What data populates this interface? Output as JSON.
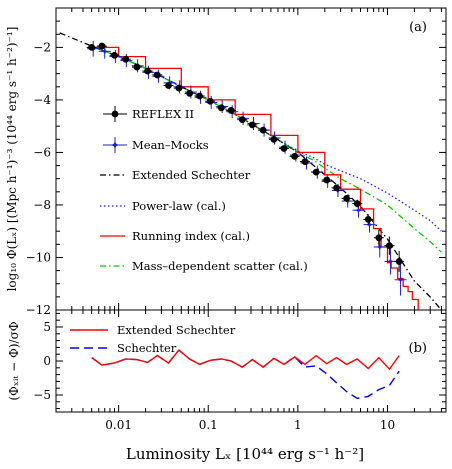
{
  "chart_data": [
    {
      "type": "scatter",
      "panel": "(a)",
      "xscale": "log",
      "xlim": [
        0.002,
        45
      ],
      "ylim": [
        -12,
        -0.5
      ],
      "grid": false,
      "legend_position": "left-center",
      "ylabel": "log₁₀ Φ(Lₓ) [(Mpc h⁻¹)⁻³ (10⁴⁴ erg s⁻¹ h⁻²)⁻¹]",
      "x_ticks": [
        0.01,
        0.1,
        1,
        10
      ],
      "x_tick_labels": [
        "0.01",
        "0.1",
        "1",
        "10"
      ],
      "y_ticks": [
        -2,
        -4,
        -6,
        -8,
        -10,
        -12
      ],
      "y_tick_labels": [
        "−2",
        "−4",
        "−6",
        "−8",
        "−10",
        "−12"
      ],
      "series": [
        {
          "name": "REFLEX II",
          "style": "points-errorbars",
          "color": "#000000",
          "x": [
            0.005,
            0.0065,
            0.009,
            0.012,
            0.016,
            0.021,
            0.027,
            0.036,
            0.047,
            0.062,
            0.08,
            0.105,
            0.14,
            0.18,
            0.24,
            0.31,
            0.41,
            0.54,
            0.7,
            0.92,
            1.2,
            1.6,
            2.1,
            2.7,
            3.5,
            4.6,
            6.1,
            8.0,
            10.5,
            13.5
          ],
          "y": [
            -2.0,
            -1.95,
            -2.3,
            -2.45,
            -2.75,
            -2.9,
            -3.05,
            -3.45,
            -3.55,
            -3.75,
            -3.85,
            -4.05,
            -4.3,
            -4.4,
            -4.75,
            -4.95,
            -5.15,
            -5.5,
            -5.85,
            -6.15,
            -6.35,
            -6.75,
            -7.05,
            -7.35,
            -7.75,
            -7.95,
            -8.55,
            -9.25,
            -9.55,
            -10.15
          ],
          "yerr": [
            0.12,
            0.12,
            0.1,
            0.1,
            0.1,
            0.1,
            0.1,
            0.1,
            0.1,
            0.1,
            0.1,
            0.1,
            0.1,
            0.1,
            0.1,
            0.1,
            0.1,
            0.1,
            0.1,
            0.1,
            0.1,
            0.1,
            0.1,
            0.1,
            0.12,
            0.15,
            0.2,
            0.3,
            0.35,
            0.4
          ]
        },
        {
          "name": "Mean–Mocks",
          "style": "points-errorbars",
          "color": "#1f1fd0",
          "x": [
            0.0052,
            0.007,
            0.0092,
            0.0122,
            0.0163,
            0.0215,
            0.0278,
            0.037,
            0.048,
            0.064,
            0.082,
            0.108,
            0.143,
            0.185,
            0.245,
            0.32,
            0.42,
            0.55,
            0.72,
            0.95,
            1.25,
            1.65,
            2.15,
            2.8,
            3.6,
            4.75,
            6.3,
            8.2,
            10.8,
            14.0
          ],
          "y": [
            -2.05,
            -2.15,
            -2.35,
            -2.5,
            -2.7,
            -2.95,
            -3.1,
            -3.35,
            -3.5,
            -3.7,
            -3.9,
            -4.1,
            -4.25,
            -4.45,
            -4.7,
            -4.9,
            -5.15,
            -5.45,
            -5.8,
            -6.1,
            -6.4,
            -6.75,
            -7.1,
            -7.45,
            -7.85,
            -8.2,
            -8.75,
            -9.6,
            -10.15,
            -10.85
          ],
          "yerr": [
            0.3,
            0.28,
            0.25,
            0.25,
            0.25,
            0.25,
            0.25,
            0.25,
            0.25,
            0.25,
            0.25,
            0.25,
            0.25,
            0.25,
            0.25,
            0.25,
            0.25,
            0.25,
            0.25,
            0.25,
            0.25,
            0.25,
            0.25,
            0.25,
            0.25,
            0.28,
            0.3,
            0.4,
            0.5,
            0.6
          ]
        },
        {
          "name": "Extended Schechter",
          "style": "dash-dot",
          "color": "#000000",
          "x": [
            0.0022,
            0.005,
            0.01,
            0.02,
            0.05,
            0.1,
            0.2,
            0.5,
            1,
            2,
            3,
            5,
            10,
            20,
            30,
            40
          ],
          "y": [
            -1.45,
            -1.95,
            -2.35,
            -2.8,
            -3.5,
            -4.0,
            -4.55,
            -5.35,
            -6.0,
            -6.85,
            -7.35,
            -8.05,
            -9.3,
            -10.9,
            -11.5,
            -12.0
          ]
        },
        {
          "name": "Power-law (cal.)",
          "style": "dotted",
          "color": "#2020ff",
          "x": [
            0.005,
            0.01,
            0.02,
            0.05,
            0.1,
            0.2,
            0.5,
            1,
            1.5,
            2,
            3,
            5,
            10,
            20,
            30,
            40
          ],
          "y": [
            -1.95,
            -2.35,
            -2.8,
            -3.5,
            -4.0,
            -4.55,
            -5.35,
            -5.95,
            -6.2,
            -6.45,
            -6.7,
            -7.0,
            -7.55,
            -8.2,
            -8.6,
            -9.0
          ]
        },
        {
          "name": "Running index (cal.)",
          "style": "solid-steps",
          "color": "#ff0000",
          "x": [
            0.005,
            0.01,
            0.02,
            0.05,
            0.1,
            0.2,
            0.5,
            1,
            2,
            3,
            5,
            7,
            8.5,
            10,
            11,
            13,
            15,
            17,
            19,
            22
          ],
          "y": [
            -2.0,
            -2.35,
            -2.8,
            -3.5,
            -4.0,
            -4.55,
            -5.35,
            -6.0,
            -6.85,
            -7.4,
            -8.15,
            -8.9,
            -9.6,
            -10.2,
            -10.4,
            -10.8,
            -11.1,
            -11.3,
            -11.6,
            -12.0
          ]
        },
        {
          "name": "Mass–dependent scatter (cal.)",
          "style": "dash-dot",
          "color": "#00c800",
          "x": [
            0.005,
            0.01,
            0.02,
            0.05,
            0.1,
            0.2,
            0.5,
            1,
            1.5,
            2,
            3,
            5,
            10,
            20,
            30,
            40
          ],
          "y": [
            -1.95,
            -2.35,
            -2.8,
            -3.5,
            -4.0,
            -4.55,
            -5.35,
            -6.0,
            -6.3,
            -6.6,
            -7.0,
            -7.4,
            -8.0,
            -8.9,
            -9.4,
            -9.8
          ]
        }
      ]
    },
    {
      "type": "line",
      "panel": "(b)",
      "xscale": "log",
      "xlim": [
        0.002,
        45
      ],
      "ylim": [
        -7.5,
        7.5
      ],
      "grid": false,
      "legend_position": "top-left",
      "xlabel": "Luminosity Lₓ  [10⁴⁴ erg s⁻¹ h⁻²]",
      "ylabel": "(Φₓᵢₜ − Φ)/σΦ",
      "y_ticks": [
        5,
        0,
        -5
      ],
      "y_tick_labels": [
        "5",
        "0",
        "−5"
      ],
      "series": [
        {
          "name": "Extended Schechter",
          "style": "solid",
          "color": "#ff0000",
          "x": [
            0.005,
            0.0065,
            0.009,
            0.012,
            0.016,
            0.021,
            0.027,
            0.036,
            0.047,
            0.062,
            0.08,
            0.105,
            0.14,
            0.18,
            0.24,
            0.31,
            0.41,
            0.54,
            0.7,
            0.92,
            1.2,
            1.6,
            2.1,
            2.7,
            3.5,
            4.6,
            6.1,
            8.0,
            10.5,
            13.5
          ],
          "y": [
            0.5,
            -0.6,
            -0.3,
            0.3,
            0.2,
            -0.2,
            0.8,
            -0.3,
            1.6,
            0.3,
            -0.5,
            0.1,
            0.3,
            0.0,
            -0.9,
            0.2,
            -0.9,
            0.4,
            -0.5,
            0.6,
            -0.5,
            0.8,
            -0.4,
            0.5,
            -0.5,
            0.3,
            -1.1,
            0.5,
            -1.2,
            0.8
          ]
        },
        {
          "name": "Schechter",
          "style": "dashed",
          "color": "#0000ff",
          "x": [
            0.005,
            0.0065,
            0.009,
            0.012,
            0.016,
            0.021,
            0.027,
            0.036,
            0.047,
            0.062,
            0.08,
            0.105,
            0.14,
            0.18,
            0.24,
            0.31,
            0.41,
            0.54,
            0.7,
            0.92,
            1.2,
            1.6,
            2.1,
            2.7,
            3.5,
            4.6,
            6.1,
            8.0,
            10.5,
            13.5
          ],
          "y": [
            0.5,
            -0.6,
            -0.3,
            0.3,
            0.2,
            -0.2,
            0.8,
            -0.3,
            1.6,
            0.3,
            -0.5,
            0.1,
            0.3,
            0.0,
            -0.9,
            0.2,
            -0.9,
            0.4,
            -0.5,
            0.6,
            -0.9,
            -0.7,
            -1.9,
            -3.2,
            -4.5,
            -5.5,
            -5.2,
            -4.2,
            -3.6,
            -1.5
          ]
        }
      ]
    }
  ]
}
